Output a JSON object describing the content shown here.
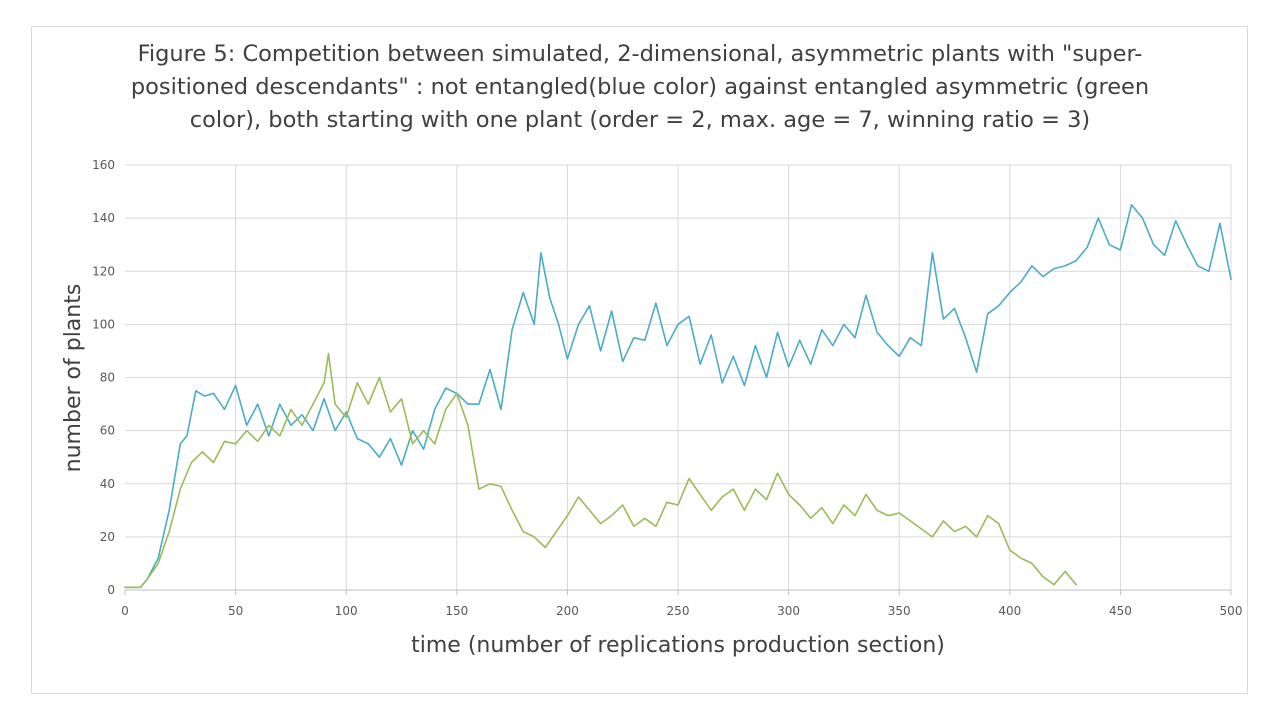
{
  "chart_data": {
    "type": "line",
    "title": "Figure 5: Competition between simulated, 2-dimensional, asymmetric plants with \"super-positioned descendants\" : not entangled(blue color) against entangled asymmetric (green color), both starting with one plant (order = 2, max. age = 7, winning ratio = 3)",
    "xlabel": "time (number of replications production section)",
    "ylabel": "number of plants",
    "xlim": [
      0,
      500
    ],
    "ylim": [
      0,
      160
    ],
    "x_ticks": [
      "0",
      "50",
      "100",
      "150",
      "200",
      "250",
      "300",
      "350",
      "400",
      "450",
      "500"
    ],
    "y_ticks": [
      "0",
      "20",
      "40",
      "60",
      "80",
      "100",
      "120",
      "140",
      "160"
    ],
    "grid": true,
    "legend": "none",
    "series": [
      {
        "color": "#4bacc6",
        "x": [
          0,
          7,
          10,
          15,
          20,
          25,
          28,
          32,
          36,
          40,
          45,
          50,
          55,
          60,
          65,
          70,
          75,
          80,
          85,
          90,
          95,
          100,
          105,
          110,
          115,
          120,
          125,
          130,
          135,
          140,
          145,
          150,
          155,
          160,
          165,
          170,
          175,
          180,
          185,
          188,
          192,
          196,
          200,
          205,
          210,
          215,
          220,
          225,
          230,
          235,
          240,
          245,
          250,
          255,
          260,
          265,
          270,
          275,
          280,
          285,
          290,
          295,
          300,
          305,
          310,
          315,
          320,
          325,
          330,
          335,
          340,
          345,
          350,
          355,
          360,
          365,
          370,
          375,
          380,
          385,
          390,
          395,
          400,
          405,
          410,
          415,
          420,
          425,
          430,
          435,
          440,
          445,
          450,
          455,
          460,
          465,
          470,
          475,
          480,
          485,
          490,
          495,
          500
        ],
        "y": [
          1,
          1,
          4,
          12,
          30,
          55,
          58,
          75,
          73,
          74,
          68,
          77,
          62,
          70,
          58,
          70,
          62,
          66,
          60,
          72,
          60,
          67,
          57,
          55,
          50,
          57,
          47,
          60,
          53,
          68,
          76,
          74,
          70,
          70,
          83,
          68,
          98,
          112,
          100,
          127,
          110,
          100,
          87,
          100,
          107,
          90,
          105,
          86,
          95,
          94,
          108,
          92,
          100,
          103,
          85,
          96,
          78,
          88,
          77,
          92,
          80,
          97,
          84,
          94,
          85,
          98,
          92,
          100,
          95,
          111,
          97,
          92,
          88,
          95,
          92,
          127,
          102,
          106,
          95,
          82,
          104,
          107,
          112,
          116,
          122,
          118,
          121,
          122,
          124,
          129,
          140,
          130,
          128,
          145,
          140,
          130,
          126,
          139,
          130,
          122,
          120,
          138,
          117
        ]
      },
      {
        "color": "#9bbb59",
        "x": [
          0,
          7,
          10,
          15,
          20,
          25,
          30,
          35,
          40,
          45,
          50,
          55,
          60,
          65,
          70,
          75,
          80,
          85,
          90,
          92,
          95,
          100,
          105,
          110,
          115,
          120,
          125,
          130,
          135,
          140,
          145,
          150,
          155,
          160,
          165,
          170,
          175,
          180,
          185,
          190,
          195,
          200,
          205,
          210,
          215,
          220,
          225,
          230,
          235,
          240,
          245,
          250,
          255,
          260,
          265,
          270,
          275,
          280,
          285,
          290,
          295,
          300,
          305,
          310,
          315,
          320,
          325,
          330,
          335,
          340,
          345,
          350,
          355,
          360,
          365,
          370,
          375,
          380,
          385,
          390,
          395,
          400,
          405,
          410,
          415,
          420,
          425,
          430
        ],
        "y": [
          1,
          1,
          4,
          10,
          22,
          38,
          48,
          52,
          48,
          56,
          55,
          60,
          56,
          62,
          58,
          68,
          62,
          70,
          78,
          89,
          70,
          65,
          78,
          70,
          80,
          67,
          72,
          55,
          60,
          55,
          68,
          74,
          62,
          38,
          40,
          39,
          30,
          22,
          20,
          16,
          22,
          28,
          35,
          30,
          25,
          28,
          32,
          24,
          27,
          24,
          33,
          32,
          42,
          36,
          30,
          35,
          38,
          30,
          38,
          34,
          44,
          36,
          32,
          27,
          31,
          25,
          32,
          28,
          36,
          30,
          28,
          29,
          26,
          23,
          20,
          26,
          22,
          24,
          20,
          28,
          25,
          15,
          12,
          10,
          5,
          2,
          7,
          2
        ]
      }
    ]
  }
}
